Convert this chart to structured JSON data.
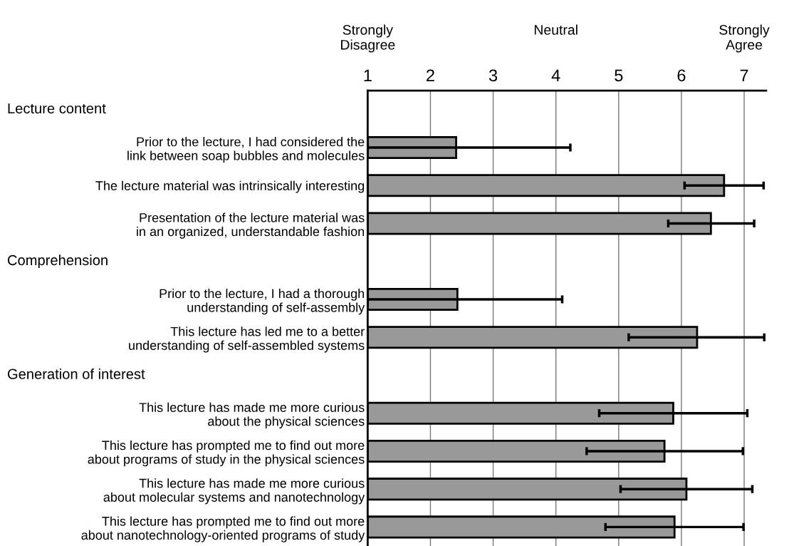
{
  "chart_data": {
    "type": "bar",
    "orientation": "horizontal",
    "categories": [
      null,
      "Prior to the lecture, I had considered the\nlink between soap bubbles and molecules",
      "The lecture material was intrinsically interesting",
      "Presentation of the lecture material was\nin an organized, understandable fashion",
      null,
      "Prior to the lecture, I had a thorough\nunderstanding of self-assembly",
      "This lecture has led me to a better\nunderstanding of self-assembled systems",
      null,
      "This lecture has made me more curious\nabout the physical sciences",
      "This lecture has prompted me to find out more\nabout programs of study in the physical sciences",
      "This lecture has made me more curious\nabout molecular systems and nanotechnology",
      "This lecture has prompted me to find out more\nabout nanotechnology-oriented programs of study"
    ],
    "values": [
      null,
      2.41,
      6.68,
      6.47,
      null,
      2.43,
      6.25,
      null,
      5.87,
      5.73,
      6.08,
      5.89
    ],
    "errors": [
      null,
      [
        1.0,
        4.23
      ],
      [
        6.05,
        7.31
      ],
      [
        5.79,
        7.16
      ],
      null,
      [
        1.0,
        4.1
      ],
      [
        5.16,
        7.32
      ],
      null,
      [
        4.69,
        7.05
      ],
      [
        4.49,
        6.98
      ],
      [
        5.03,
        7.13
      ],
      [
        4.79,
        6.99
      ]
    ],
    "color": "#999999",
    "xlim": [
      1,
      7.35
    ],
    "xticks": [
      1,
      2,
      3,
      4,
      5,
      6,
      7
    ],
    "annotations": [
      "Strongly\nDisagree",
      "Neutral",
      "Strongly\nAgree",
      "Lecture content",
      "Comprehension",
      "Generation of interest"
    ],
    "grid": "x",
    "legend": false
  }
}
